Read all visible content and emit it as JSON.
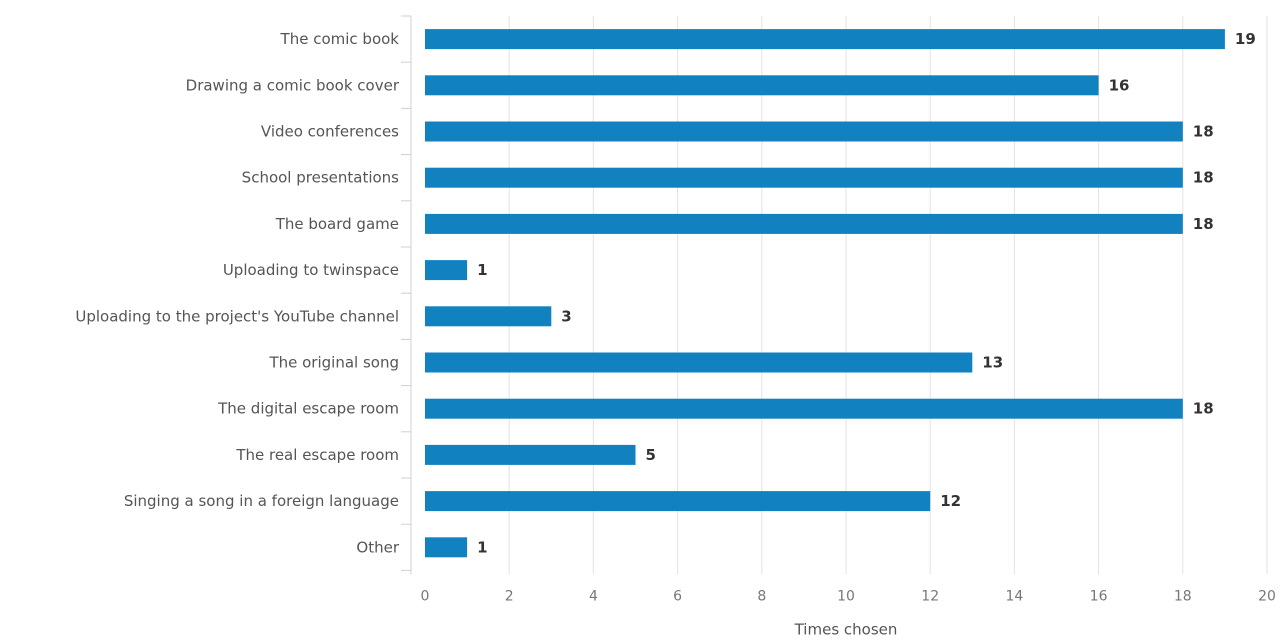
{
  "chart_data": {
    "type": "bar",
    "orientation": "horizontal",
    "categories": [
      "The comic book",
      "Drawing a comic book cover",
      "Video conferences",
      "School presentations",
      "The board game",
      "Uploading to twinspace",
      "Uploading to the project's YouTube channel",
      "The original song",
      "The digital escape room",
      "The real escape room",
      "Singing a song in a foreign language",
      "Other"
    ],
    "values": [
      19,
      16,
      18,
      18,
      18,
      1,
      3,
      13,
      18,
      5,
      12,
      1
    ],
    "xlabel": "Times chosen",
    "ylabel": "",
    "xlim": [
      0,
      20
    ],
    "xticks": [
      0,
      2,
      4,
      6,
      8,
      10,
      12,
      14,
      16,
      18,
      20
    ],
    "grid": true,
    "data_labels": true,
    "bar_color": "#1182bf"
  }
}
